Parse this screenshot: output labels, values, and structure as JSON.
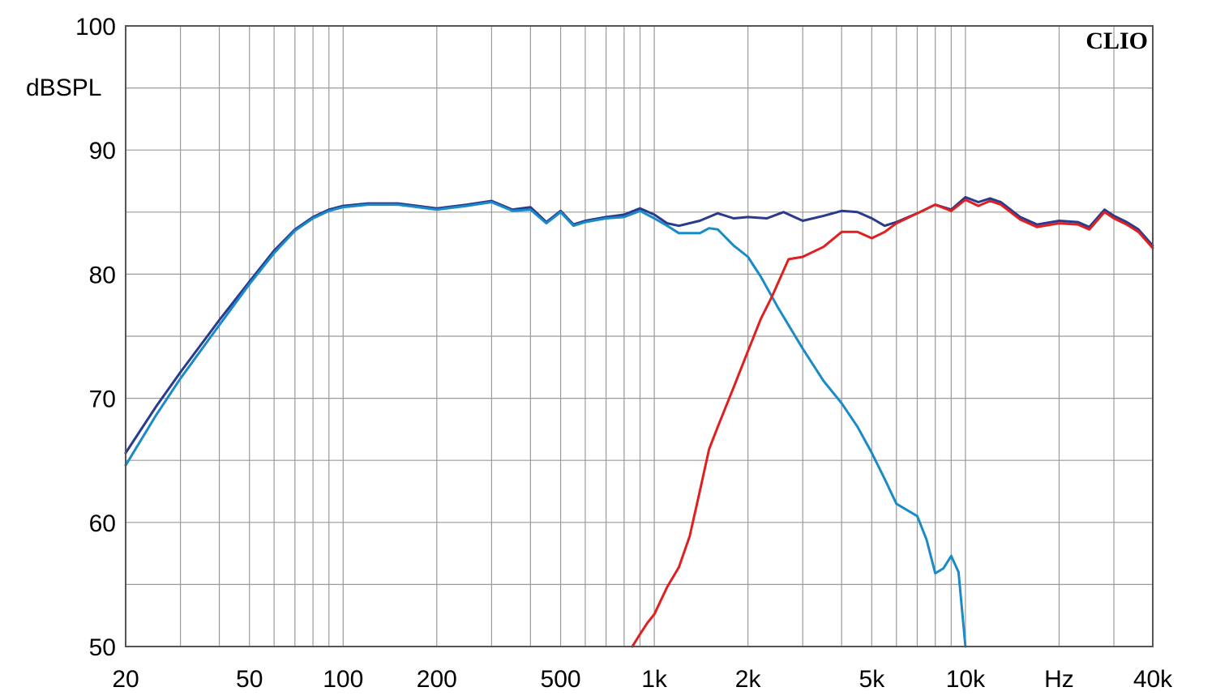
{
  "chart_data": {
    "type": "line",
    "x_scale": "log",
    "xlim": [
      20,
      40000
    ],
    "ylim": [
      50,
      100
    ],
    "ylabel": "dBSPL",
    "x_unit_label": "Hz",
    "brand": "CLIO",
    "grid": true,
    "x_ticks": [
      {
        "value": 20,
        "label": "20"
      },
      {
        "value": 50,
        "label": "50"
      },
      {
        "value": 100,
        "label": "100"
      },
      {
        "value": 200,
        "label": "200"
      },
      {
        "value": 500,
        "label": "500"
      },
      {
        "value": 1000,
        "label": "1k"
      },
      {
        "value": 2000,
        "label": "2k"
      },
      {
        "value": 5000,
        "label": "5k"
      },
      {
        "value": 10000,
        "label": "10k"
      },
      {
        "value": 20000,
        "label": "Hz"
      },
      {
        "value": 40000,
        "label": "40k"
      }
    ],
    "y_ticks": [
      {
        "value": 100,
        "label": "100"
      },
      {
        "value": 90,
        "label": "90"
      },
      {
        "value": 80,
        "label": "80"
      },
      {
        "value": 70,
        "label": "70"
      },
      {
        "value": 60,
        "label": "60"
      },
      {
        "value": 50,
        "label": "50"
      }
    ],
    "series": [
      {
        "color": "#2a3a8c",
        "points": [
          [
            20,
            65.6
          ],
          [
            25,
            69.3
          ],
          [
            30,
            72.1
          ],
          [
            40,
            76.3
          ],
          [
            50,
            79.4
          ],
          [
            60,
            81.9
          ],
          [
            70,
            83.6
          ],
          [
            80,
            84.6
          ],
          [
            90,
            85.2
          ],
          [
            100,
            85.5
          ],
          [
            120,
            85.7
          ],
          [
            150,
            85.7
          ],
          [
            200,
            85.3
          ],
          [
            250,
            85.6
          ],
          [
            300,
            85.9
          ],
          [
            350,
            85.2
          ],
          [
            400,
            85.4
          ],
          [
            450,
            84.2
          ],
          [
            500,
            85.1
          ],
          [
            550,
            84.0
          ],
          [
            600,
            84.3
          ],
          [
            700,
            84.6
          ],
          [
            800,
            84.8
          ],
          [
            900,
            85.3
          ],
          [
            1000,
            84.8
          ],
          [
            1100,
            84.1
          ],
          [
            1200,
            83.9
          ],
          [
            1400,
            84.3
          ],
          [
            1600,
            84.9
          ],
          [
            1800,
            84.5
          ],
          [
            2000,
            84.6
          ],
          [
            2300,
            84.5
          ],
          [
            2600,
            85.0
          ],
          [
            3000,
            84.3
          ],
          [
            3500,
            84.7
          ],
          [
            4000,
            85.1
          ],
          [
            4500,
            85.0
          ],
          [
            5000,
            84.5
          ],
          [
            5500,
            83.9
          ],
          [
            6000,
            84.2
          ],
          [
            7000,
            84.9
          ],
          [
            8000,
            85.6
          ],
          [
            9000,
            85.2
          ],
          [
            10000,
            86.2
          ],
          [
            11000,
            85.8
          ],
          [
            12000,
            86.1
          ],
          [
            13000,
            85.8
          ],
          [
            15000,
            84.6
          ],
          [
            17000,
            84.0
          ],
          [
            20000,
            84.3
          ],
          [
            23000,
            84.2
          ],
          [
            25000,
            83.8
          ],
          [
            28000,
            85.2
          ],
          [
            30000,
            84.7
          ],
          [
            33000,
            84.2
          ],
          [
            36000,
            83.6
          ],
          [
            40000,
            82.3
          ]
        ]
      },
      {
        "color": "#1a8ac8",
        "points": [
          [
            20,
            64.6
          ],
          [
            25,
            68.6
          ],
          [
            30,
            71.6
          ],
          [
            40,
            75.9
          ],
          [
            50,
            79.2
          ],
          [
            60,
            81.7
          ],
          [
            70,
            83.5
          ],
          [
            80,
            84.5
          ],
          [
            90,
            85.1
          ],
          [
            100,
            85.4
          ],
          [
            120,
            85.6
          ],
          [
            150,
            85.6
          ],
          [
            200,
            85.2
          ],
          [
            250,
            85.5
          ],
          [
            300,
            85.8
          ],
          [
            350,
            85.1
          ],
          [
            400,
            85.2
          ],
          [
            450,
            84.1
          ],
          [
            500,
            85.0
          ],
          [
            550,
            83.9
          ],
          [
            600,
            84.2
          ],
          [
            700,
            84.5
          ],
          [
            800,
            84.6
          ],
          [
            900,
            85.1
          ],
          [
            1000,
            84.5
          ],
          [
            1100,
            83.9
          ],
          [
            1200,
            83.3
          ],
          [
            1300,
            83.3
          ],
          [
            1400,
            83.3
          ],
          [
            1500,
            83.7
          ],
          [
            1600,
            83.6
          ],
          [
            1800,
            82.3
          ],
          [
            2000,
            81.4
          ],
          [
            2200,
            79.8
          ],
          [
            2500,
            77.3
          ],
          [
            3000,
            74.0
          ],
          [
            3500,
            71.4
          ],
          [
            4000,
            69.6
          ],
          [
            4500,
            67.7
          ],
          [
            5000,
            65.6
          ],
          [
            5500,
            63.5
          ],
          [
            6000,
            61.5
          ],
          [
            7000,
            60.5
          ],
          [
            7500,
            58.6
          ],
          [
            8000,
            55.9
          ],
          [
            8500,
            56.3
          ],
          [
            9000,
            57.3
          ],
          [
            9500,
            56.0
          ],
          [
            10000,
            50.0
          ]
        ]
      },
      {
        "color": "#e02020",
        "points": [
          [
            850,
            50.0
          ],
          [
            900,
            51.0
          ],
          [
            950,
            51.9
          ],
          [
            1000,
            52.6
          ],
          [
            1100,
            54.8
          ],
          [
            1200,
            56.4
          ],
          [
            1300,
            58.9
          ],
          [
            1400,
            62.5
          ],
          [
            1500,
            65.9
          ],
          [
            1600,
            67.7
          ],
          [
            1800,
            70.9
          ],
          [
            2000,
            73.8
          ],
          [
            2200,
            76.4
          ],
          [
            2400,
            78.3
          ],
          [
            2700,
            81.2
          ],
          [
            3000,
            81.4
          ],
          [
            3500,
            82.2
          ],
          [
            4000,
            83.4
          ],
          [
            4500,
            83.4
          ],
          [
            5000,
            82.9
          ],
          [
            5500,
            83.4
          ],
          [
            6000,
            84.1
          ],
          [
            7000,
            84.9
          ],
          [
            8000,
            85.6
          ],
          [
            9000,
            85.1
          ],
          [
            10000,
            86.0
          ],
          [
            11000,
            85.5
          ],
          [
            12000,
            85.9
          ],
          [
            13000,
            85.6
          ],
          [
            15000,
            84.4
          ],
          [
            17000,
            83.8
          ],
          [
            20000,
            84.1
          ],
          [
            23000,
            84.0
          ],
          [
            25000,
            83.6
          ],
          [
            28000,
            85.0
          ],
          [
            30000,
            84.5
          ],
          [
            33000,
            84.0
          ],
          [
            36000,
            83.4
          ],
          [
            40000,
            82.1
          ]
        ]
      }
    ]
  }
}
